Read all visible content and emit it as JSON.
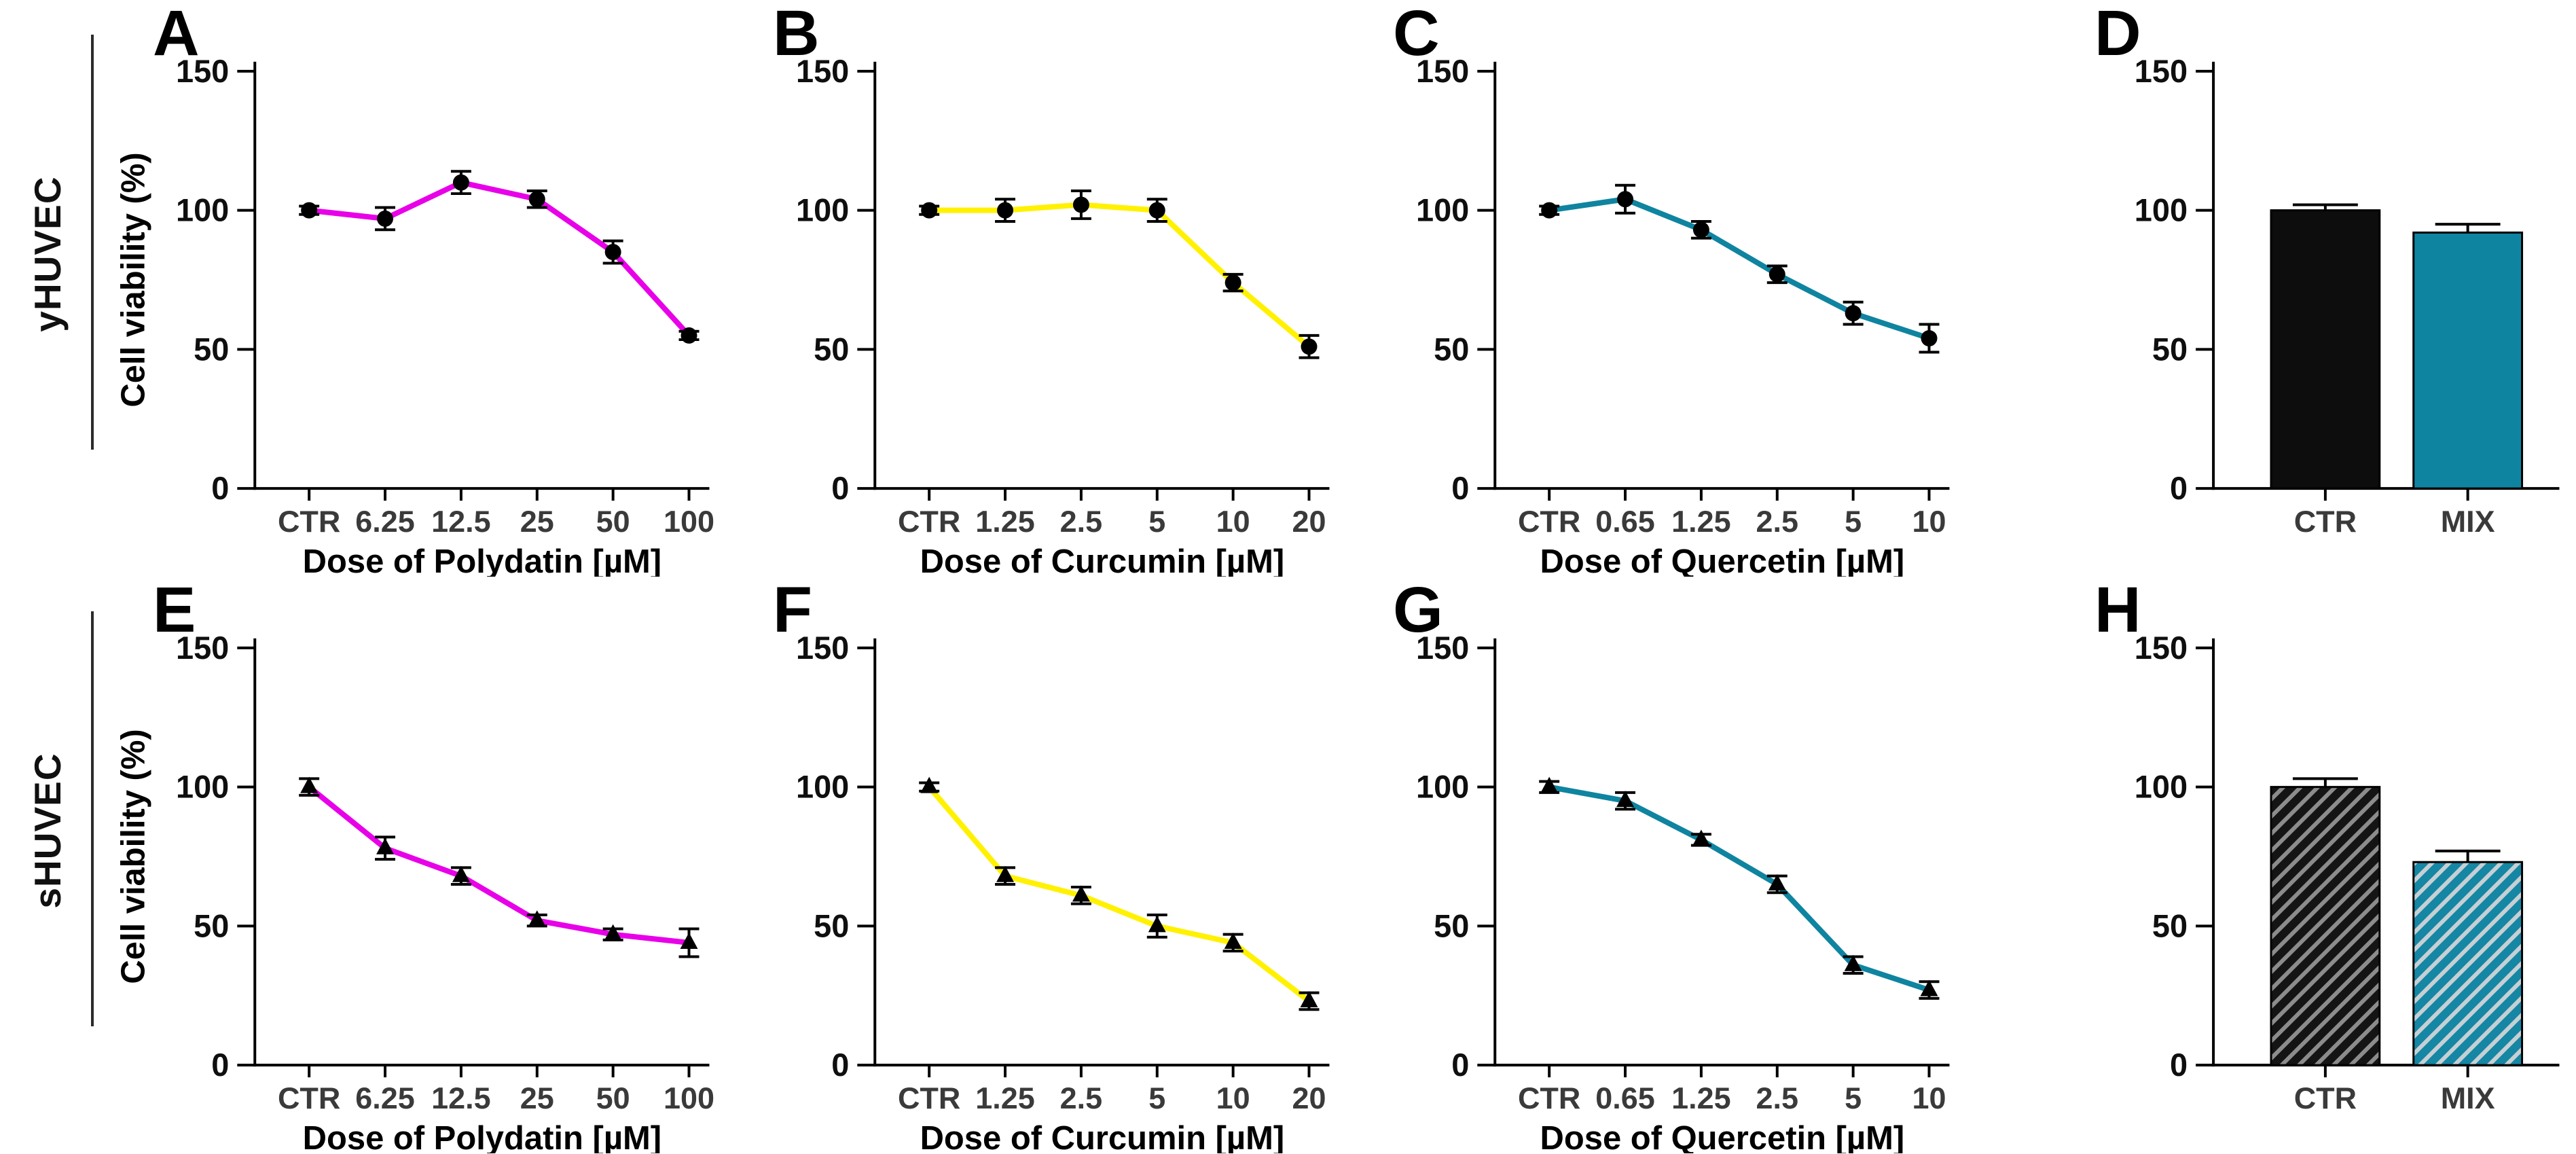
{
  "figure": {
    "background": "#ffffff"
  },
  "rows": [
    {
      "label": "yHUVEC"
    },
    {
      "label": "sHUVEC"
    }
  ],
  "palette": {
    "polydatin": "#E800E8",
    "curcumin": "#FFF100",
    "quercetin": "#0F84A0",
    "bar_black": "#0d0d0d",
    "axis": "#000000"
  },
  "chart_data": [
    {
      "panel": "A",
      "row": "yHUVEC",
      "type": "line",
      "marker": "circle",
      "color": "#E800E8",
      "ylabel": "Cell viability (%)",
      "xlabel": "Dose of Polydatin [µM]",
      "categories": [
        "CTR",
        "6.25",
        "12.5",
        "25",
        "50",
        "100"
      ],
      "values": [
        100,
        97,
        110,
        104,
        85,
        55
      ],
      "errors": [
        1.5,
        4,
        4,
        3,
        4,
        1.5
      ],
      "yticks": [
        0,
        50,
        100,
        150
      ],
      "ylim": [
        0,
        150
      ],
      "grid": false
    },
    {
      "panel": "B",
      "row": "yHUVEC",
      "type": "line",
      "marker": "circle",
      "color": "#FFF100",
      "ylabel": "",
      "xlabel": "Dose of Curcumin [µM]",
      "categories": [
        "CTR",
        "1.25",
        "2.5",
        "5",
        "10",
        "20"
      ],
      "values": [
        100,
        100,
        102,
        100,
        74,
        51
      ],
      "errors": [
        1.5,
        4,
        5,
        4,
        3,
        4
      ],
      "yticks": [
        0,
        50,
        100,
        150
      ],
      "ylim": [
        0,
        150
      ],
      "grid": false
    },
    {
      "panel": "C",
      "row": "yHUVEC",
      "type": "line",
      "marker": "circle",
      "color": "#0F84A0",
      "ylabel": "",
      "xlabel": "Dose of Quercetin [µM]",
      "categories": [
        "CTR",
        "0.65",
        "1.25",
        "2.5",
        "5",
        "10"
      ],
      "values": [
        100,
        104,
        93,
        77,
        63,
        54
      ],
      "errors": [
        1.5,
        5,
        3,
        3,
        4,
        5
      ],
      "yticks": [
        0,
        50,
        100,
        150
      ],
      "ylim": [
        0,
        150
      ],
      "grid": false
    },
    {
      "panel": "D",
      "row": "yHUVEC",
      "type": "bar",
      "categories": [
        "CTR",
        "MIX"
      ],
      "values": [
        100,
        92
      ],
      "errors": [
        2,
        3
      ],
      "bar_colors": [
        "#0d0d0d",
        "#0F84A0"
      ],
      "hatch": false,
      "hatch_colors": [
        "#8c8c8c",
        "#c6d0d4"
      ],
      "yticks": [
        0,
        50,
        100,
        150
      ],
      "ylim": [
        0,
        150
      ],
      "grid": false
    },
    {
      "panel": "E",
      "row": "sHUVEC",
      "type": "line",
      "marker": "triangle",
      "color": "#E800E8",
      "ylabel": "Cell viability (%)",
      "xlabel": "Dose of Polydatin [µM]",
      "categories": [
        "CTR",
        "6.25",
        "12.5",
        "25",
        "50",
        "100"
      ],
      "values": [
        100,
        78,
        68,
        52,
        47,
        44
      ],
      "errors": [
        3,
        4,
        3,
        2,
        2,
        5
      ],
      "yticks": [
        0,
        50,
        100,
        150
      ],
      "ylim": [
        0,
        150
      ],
      "grid": false
    },
    {
      "panel": "F",
      "row": "sHUVEC",
      "type": "line",
      "marker": "triangle",
      "color": "#FFF100",
      "ylabel": "",
      "xlabel": "Dose of Curcumin [µM]",
      "categories": [
        "CTR",
        "1.25",
        "2.5",
        "5",
        "10",
        "20"
      ],
      "values": [
        100,
        68,
        61,
        50,
        44,
        23
      ],
      "errors": [
        1.5,
        3,
        3,
        4,
        3,
        3
      ],
      "yticks": [
        0,
        50,
        100,
        150
      ],
      "ylim": [
        0,
        150
      ],
      "grid": false
    },
    {
      "panel": "G",
      "row": "sHUVEC",
      "type": "line",
      "marker": "triangle",
      "color": "#0F84A0",
      "ylabel": "",
      "xlabel": "Dose of Quercetin [µM]",
      "categories": [
        "CTR",
        "0.65",
        "1.25",
        "2.5",
        "5",
        "10"
      ],
      "values": [
        100,
        95,
        81,
        65,
        36,
        27
      ],
      "errors": [
        2,
        3,
        2,
        3,
        3,
        3
      ],
      "yticks": [
        0,
        50,
        100,
        150
      ],
      "ylim": [
        0,
        150
      ],
      "grid": false
    },
    {
      "panel": "H",
      "row": "sHUVEC",
      "type": "bar",
      "categories": [
        "CTR",
        "MIX"
      ],
      "values": [
        100,
        73
      ],
      "errors": [
        3,
        4
      ],
      "bar_colors": [
        "#141414",
        "#1586A3"
      ],
      "hatch": true,
      "hatch_colors": [
        "#8c8c8c",
        "#c6d0d4"
      ],
      "yticks": [
        0,
        50,
        100,
        150
      ],
      "ylim": [
        0,
        150
      ],
      "grid": false
    }
  ]
}
